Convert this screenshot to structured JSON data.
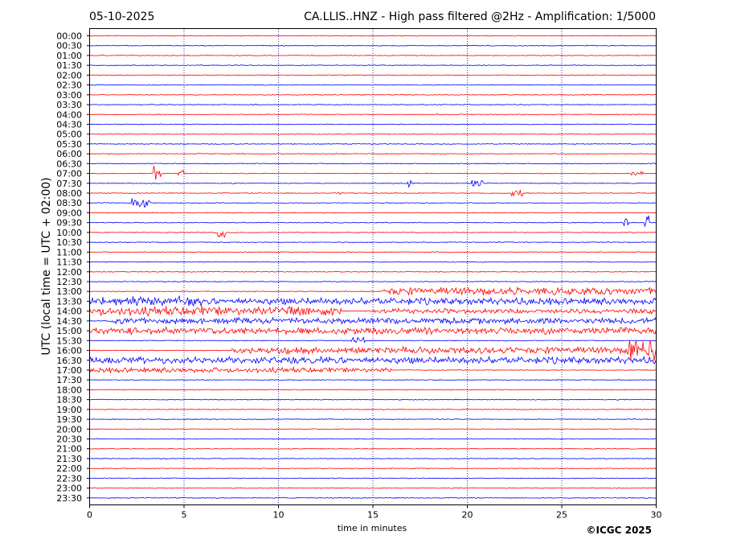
{
  "header": {
    "date": "05-10-2025",
    "title": "CA.LLIS..HNZ - High pass filtered @2Hz - Amplification: 1/5000"
  },
  "footer": {
    "copyright": "©ICGC 2025"
  },
  "colors": {
    "odd_trace": "#ff0000",
    "even_trace": "#0000ff",
    "grid": "#00008b",
    "frame": "#000000"
  },
  "chart_data": {
    "type": "line",
    "subtype": "helicorder",
    "xlabel": "time in minutes",
    "ylabel": "UTC (local time = UTC + 02:00)",
    "xlim": [
      0,
      30
    ],
    "xticks": [
      0,
      5,
      10,
      15,
      20,
      25,
      30
    ],
    "grid": "vertical dotted at 5-minute intervals",
    "rows": [
      "00:00",
      "00:30",
      "01:00",
      "01:30",
      "02:00",
      "02:30",
      "03:00",
      "03:30",
      "04:00",
      "04:30",
      "05:00",
      "05:30",
      "06:00",
      "06:30",
      "07:00",
      "07:30",
      "08:00",
      "08:30",
      "09:00",
      "09:30",
      "10:00",
      "10:30",
      "11:00",
      "11:30",
      "12:00",
      "12:30",
      "13:00",
      "13:30",
      "14:00",
      "14:30",
      "15:00",
      "15:30",
      "16:00",
      "16:30",
      "17:00",
      "17:30",
      "18:00",
      "18:30",
      "19:00",
      "19:30",
      "20:00",
      "20:30",
      "21:00",
      "21:30",
      "22:00",
      "22:30",
      "23:00",
      "23:30"
    ],
    "row_colors": "alternating red/blue starting with red at 00:00",
    "activity": [
      {
        "row": "07:00",
        "minutes": [
          3.4,
          3.8
        ],
        "amplitude": 1.1
      },
      {
        "row": "07:00",
        "minutes": [
          4.7,
          5.1
        ],
        "amplitude": 0.7
      },
      {
        "row": "07:00",
        "minutes": [
          28.7,
          29.3
        ],
        "amplitude": 0.3
      },
      {
        "row": "07:30",
        "minutes": [
          16.8,
          17.0
        ],
        "amplitude": 0.5
      },
      {
        "row": "07:30",
        "minutes": [
          20.2,
          20.8
        ],
        "amplitude": 0.5
      },
      {
        "row": "08:00",
        "minutes": [
          13.2,
          13.5
        ],
        "amplitude": 0.4
      },
      {
        "row": "08:00",
        "minutes": [
          22.3,
          22.9
        ],
        "amplitude": 0.6
      },
      {
        "row": "08:30",
        "minutes": [
          2.2,
          3.2
        ],
        "amplitude": 0.7
      },
      {
        "row": "09:30",
        "minutes": [
          28.3,
          28.5
        ],
        "amplitude": 0.9
      },
      {
        "row": "09:30",
        "minutes": [
          29.4,
          29.6
        ],
        "amplitude": 0.8
      },
      {
        "row": "10:00",
        "minutes": [
          6.8,
          7.2
        ],
        "amplitude": 0.7
      },
      {
        "row": "13:00",
        "minutes": [
          15.5,
          30
        ],
        "amplitude": 0.45
      },
      {
        "row": "13:30",
        "minutes": [
          0,
          6
        ],
        "amplitude": 0.55
      },
      {
        "row": "13:30",
        "minutes": [
          6,
          30
        ],
        "amplitude": 0.4
      },
      {
        "row": "14:00",
        "minutes": [
          0,
          13.3
        ],
        "amplitude": 0.55
      },
      {
        "row": "14:00",
        "minutes": [
          15,
          30
        ],
        "amplitude": 0.3
      },
      {
        "row": "14:30",
        "minutes": [
          1,
          30
        ],
        "amplitude": 0.35
      },
      {
        "row": "15:00",
        "minutes": [
          0,
          30
        ],
        "amplitude": 0.4
      },
      {
        "row": "15:30",
        "minutes": [
          13.8,
          14.6
        ],
        "amplitude": 0.5
      },
      {
        "row": "16:00",
        "minutes": [
          7.5,
          30
        ],
        "amplitude": 0.4
      },
      {
        "row": "16:00",
        "minutes": [
          28.5,
          30
        ],
        "amplitude": 1.6
      },
      {
        "row": "16:30",
        "minutes": [
          0,
          30
        ],
        "amplitude": 0.4
      },
      {
        "row": "17:00",
        "minutes": [
          0,
          16
        ],
        "amplitude": 0.3
      }
    ]
  }
}
